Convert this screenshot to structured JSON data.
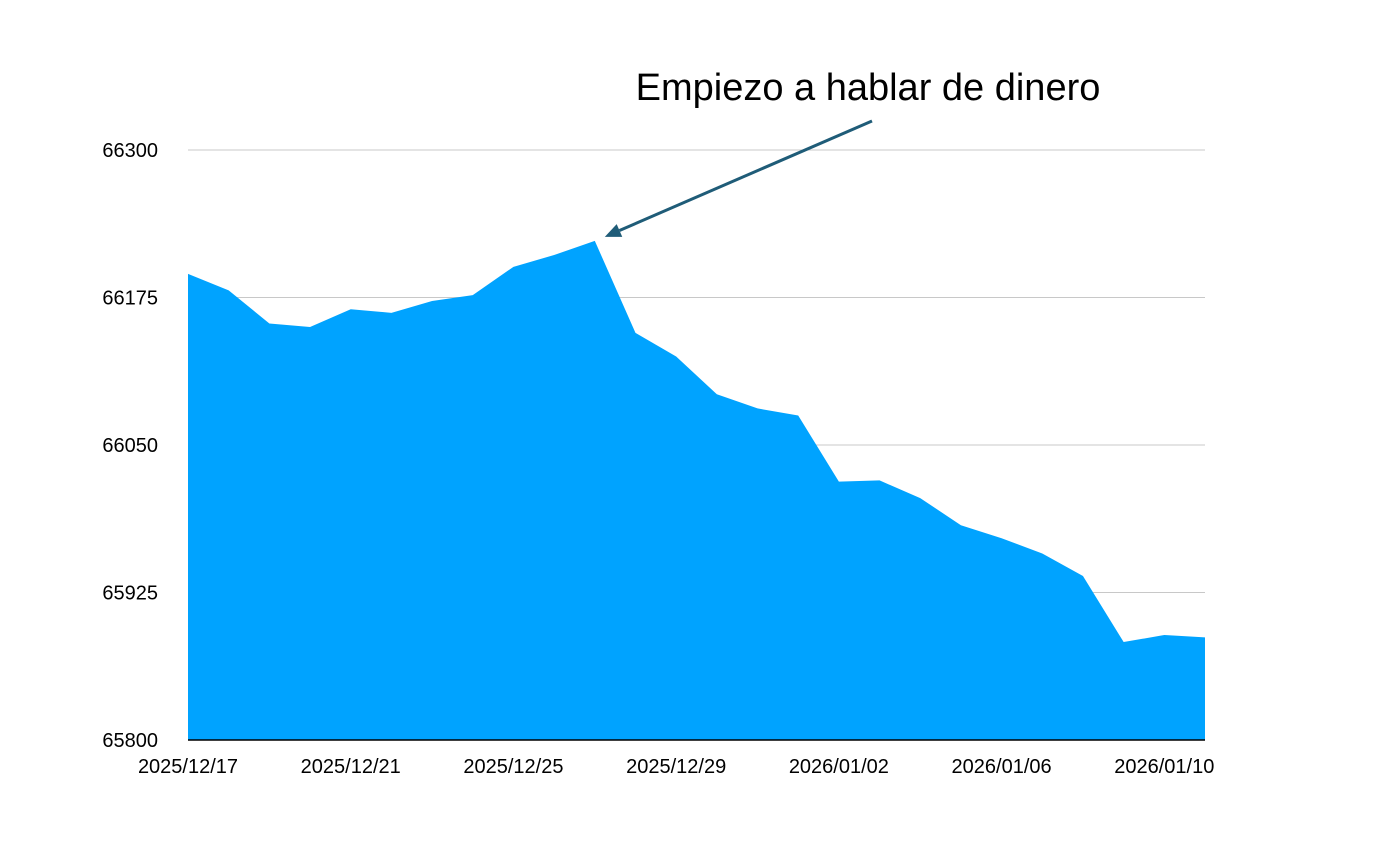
{
  "chart_data": {
    "type": "area",
    "title": "",
    "xlabel": "",
    "ylabel": "",
    "ylim": [
      65800,
      66300
    ],
    "y_ticks": [
      65800,
      65925,
      66050,
      66175,
      66300
    ],
    "x_ticks": [
      "2025/12/17",
      "2025/12/21",
      "2025/12/25",
      "2025/12/29",
      "2026/01/02",
      "2026/01/06",
      "2026/01/10"
    ],
    "grid": "horizontal",
    "legend": "none",
    "series": [
      {
        "color": "#00A3FF",
        "points": [
          {
            "x": "2025/12/17",
            "y": 66195
          },
          {
            "x": "2025/12/18",
            "y": 66181
          },
          {
            "x": "2025/12/19",
            "y": 66153
          },
          {
            "x": "2025/12/20",
            "y": 66150
          },
          {
            "x": "2025/12/21",
            "y": 66165
          },
          {
            "x": "2025/12/22",
            "y": 66162
          },
          {
            "x": "2025/12/23",
            "y": 66172
          },
          {
            "x": "2025/12/24",
            "y": 66177
          },
          {
            "x": "2025/12/25",
            "y": 66201
          },
          {
            "x": "2025/12/26",
            "y": 66211
          },
          {
            "x": "2025/12/27",
            "y": 66223
          },
          {
            "x": "2025/12/28",
            "y": 66145
          },
          {
            "x": "2025/12/29",
            "y": 66125
          },
          {
            "x": "2025/12/30",
            "y": 66093
          },
          {
            "x": "2025/12/31",
            "y": 66081
          },
          {
            "x": "2026/01/01",
            "y": 66075
          },
          {
            "x": "2026/01/02",
            "y": 66019
          },
          {
            "x": "2026/01/03",
            "y": 66020
          },
          {
            "x": "2026/01/04",
            "y": 66005
          },
          {
            "x": "2026/01/05",
            "y": 65982
          },
          {
            "x": "2026/01/06",
            "y": 65971
          },
          {
            "x": "2026/01/07",
            "y": 65958
          },
          {
            "x": "2026/01/08",
            "y": 65939
          },
          {
            "x": "2026/01/09",
            "y": 65883
          },
          {
            "x": "2026/01/10",
            "y": 65889
          },
          {
            "x": "2026/01/11",
            "y": 65887
          }
        ]
      }
    ],
    "annotations": [
      {
        "text": "Empiezo a hablar de dinero",
        "points_to": {
          "x": "2025/12/27",
          "y": 66223
        }
      }
    ]
  },
  "colors": {
    "area": "#00A3FF",
    "grid": "#C8C8C8",
    "axis": "#000000",
    "arrow": "#1F5C78"
  }
}
